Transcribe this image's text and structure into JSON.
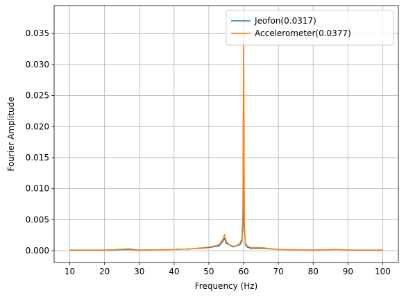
{
  "chart_data": {
    "type": "line",
    "title": "",
    "xlabel": "Frequency (Hz)",
    "ylabel": "Fourier Amplitude",
    "xlim": [
      5.5,
      104.5
    ],
    "ylim": [
      -0.0019,
      0.0395
    ],
    "xticks": [
      10,
      20,
      30,
      40,
      50,
      60,
      70,
      80,
      90,
      100
    ],
    "yticks": [
      0.0,
      0.005,
      0.01,
      0.015,
      0.02,
      0.025,
      0.03,
      0.035
    ],
    "ytick_labels": [
      "0.000",
      "0.005",
      "0.010",
      "0.015",
      "0.020",
      "0.025",
      "0.030",
      "0.035"
    ],
    "grid": true,
    "legend_position": "top-right",
    "series": [
      {
        "name": "Jeofon(0.0317)",
        "color": "#1f77b4",
        "x": [
          10,
          20,
          27,
          30,
          40,
          45,
          50,
          53,
          54,
          54.5,
          55,
          56,
          57,
          58,
          59,
          59.5,
          59.8,
          60,
          60.2,
          60.5,
          61,
          62,
          65,
          70,
          80,
          87,
          90,
          100
        ],
        "y": [
          0.0001,
          0.0001,
          0.0002,
          0.0001,
          0.0002,
          0.0003,
          0.0005,
          0.0008,
          0.0015,
          0.002,
          0.0012,
          0.0009,
          0.0007,
          0.0008,
          0.001,
          0.0015,
          0.0045,
          0.0317,
          0.004,
          0.001,
          0.0006,
          0.0004,
          0.0004,
          0.0002,
          0.0001,
          0.0002,
          0.0001,
          0.0001
        ]
      },
      {
        "name": "Accelerometer(0.0377)",
        "color": "#ff7f0e",
        "x": [
          10,
          20,
          27,
          30,
          40,
          45,
          50,
          52,
          53,
          54,
          54.5,
          55,
          56,
          57,
          58,
          59,
          59.5,
          59.8,
          60,
          60.2,
          60.5,
          61,
          62,
          65,
          70,
          80,
          87,
          90,
          100
        ],
        "y": [
          0.0001,
          0.0001,
          0.0003,
          0.0001,
          0.0002,
          0.0003,
          0.0006,
          0.0008,
          0.001,
          0.0018,
          0.0026,
          0.0015,
          0.0009,
          0.0006,
          0.0008,
          0.0012,
          0.002,
          0.007,
          0.0377,
          0.005,
          0.0012,
          0.0008,
          0.0005,
          0.0005,
          0.0002,
          0.0001,
          0.0002,
          0.0001,
          0.0001
        ]
      }
    ]
  }
}
